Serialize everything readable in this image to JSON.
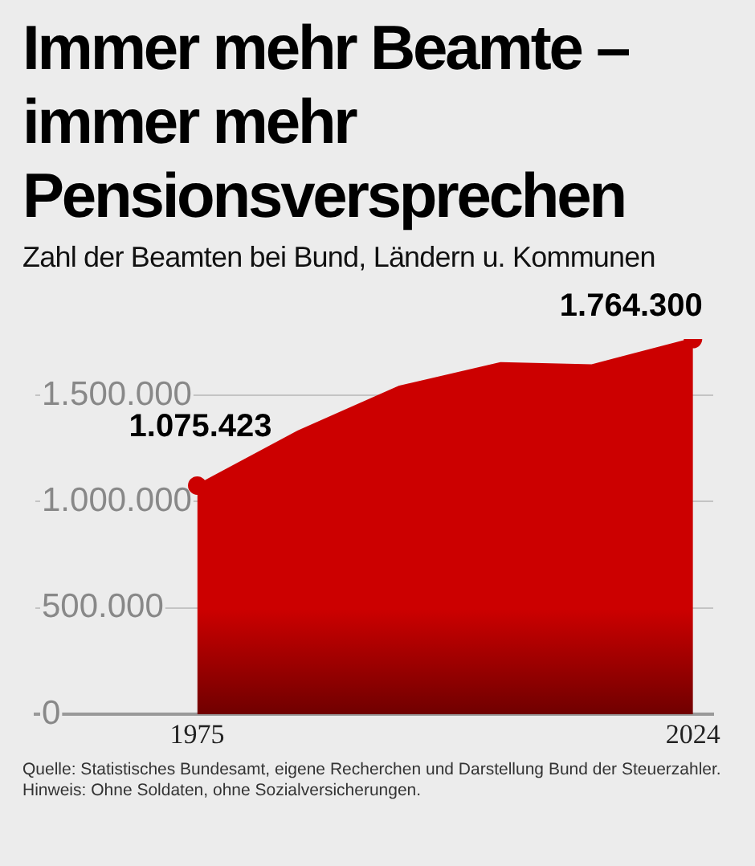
{
  "chart_data": {
    "type": "area",
    "title": "Immer mehr Beamte – immer mehr Pensionsversprechen",
    "subtitle": "Zahl der Beamten bei Bund, Ländern u. Kommunen",
    "x": [
      1975,
      1985,
      1995,
      2005,
      2014,
      2024
    ],
    "series": [
      {
        "color": "#cc0000",
        "values": [
          1075423,
          1330000,
          1540000,
          1650000,
          1640000,
          1764300
        ],
        "value_labels": [
          "1.075.423",
          null,
          null,
          null,
          null,
          "1.764.300"
        ]
      }
    ],
    "xlim": [
      1959,
      2026
    ],
    "xticks": [
      1975,
      2024
    ],
    "ylim": [
      0,
      1764300
    ],
    "yticks": [
      0,
      {
        "value": 500000,
        "label": "500.000"
      },
      {
        "value": 1000000,
        "label": "1.000.000"
      },
      {
        "value": 1500000,
        "label": "1.500.000"
      }
    ],
    "grid": "y",
    "legend": false,
    "annotations": [
      "Quelle: Statistisches Bundesamt, eigene Recherchen und Darstellung Bund der Steuerzahler. Hinweis: Ohne Soldaten, ohne Sozialversicherungen."
    ]
  }
}
